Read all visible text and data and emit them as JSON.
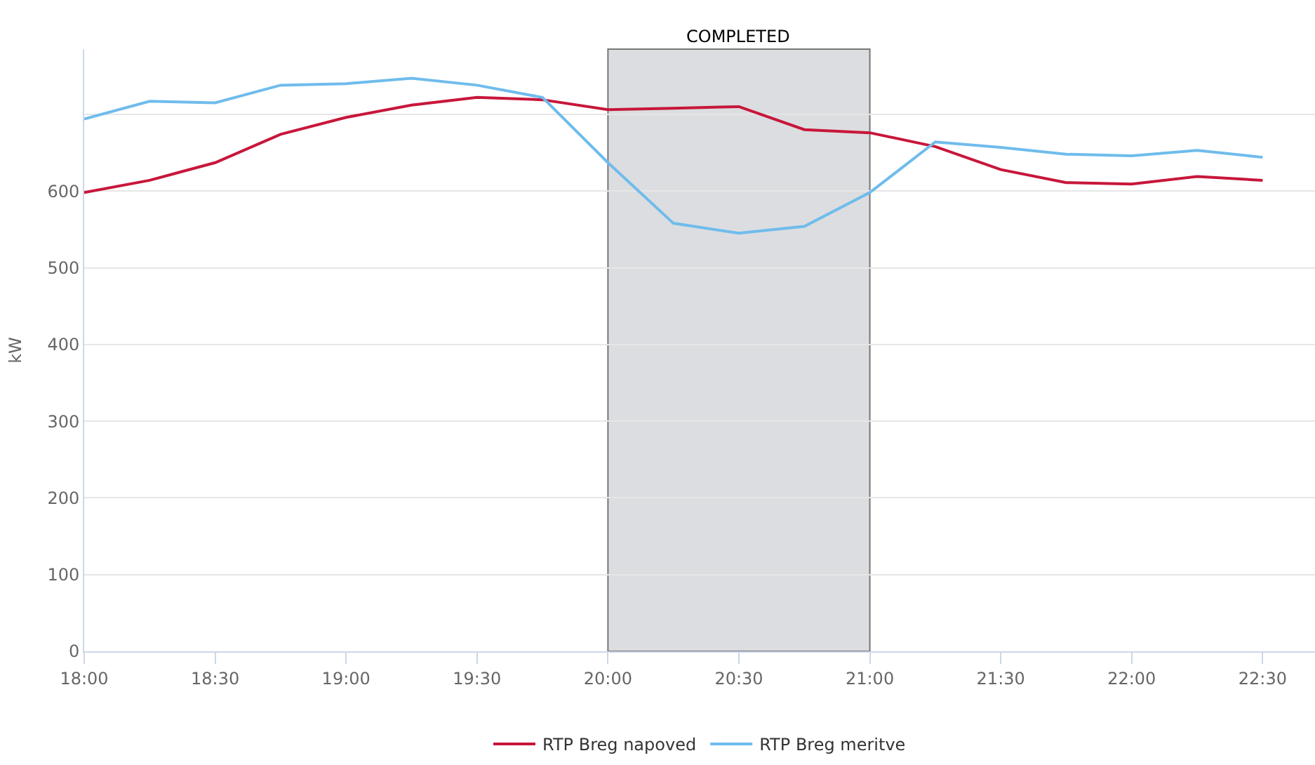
{
  "chart_data": {
    "type": "line",
    "ylabel": "kW",
    "x": [
      18,
      18.25,
      18.5,
      18.75,
      19,
      19.25,
      19.5,
      19.75,
      20,
      20.25,
      20.5,
      20.75,
      21,
      21.25,
      21.5,
      21.75,
      22,
      22.25,
      22.5
    ],
    "series": [
      {
        "name": "RTP Breg napoved",
        "color": "#c8163a",
        "values": [
          598,
          614,
          637,
          674,
          696,
          712,
          722,
          719,
          706,
          708,
          710,
          680,
          676,
          658,
          628,
          611,
          609,
          619,
          614
        ]
      },
      {
        "name": "RTP Breg meritve",
        "color": "#6fbcec",
        "values": [
          694,
          717,
          715,
          738,
          740,
          747,
          738,
          722,
          637,
          558,
          545,
          554,
          598,
          664,
          657,
          648,
          646,
          653,
          644
        ]
      }
    ],
    "xlim": [
      18,
      22.7
    ],
    "xticks": [
      {
        "value": 18,
        "label": "18:00"
      },
      {
        "value": 18.5,
        "label": "18:30"
      },
      {
        "value": 19,
        "label": "19:00"
      },
      {
        "value": 19.5,
        "label": "19:30"
      },
      {
        "value": 20,
        "label": "20:00"
      },
      {
        "value": 20.5,
        "label": "20:30"
      },
      {
        "value": 21,
        "label": "21:00"
      },
      {
        "value": 21.5,
        "label": "21:30"
      },
      {
        "value": 22,
        "label": "22:00"
      },
      {
        "value": 22.5,
        "label": "22:30"
      }
    ],
    "ylim": [
      0,
      785
    ],
    "yticks": [
      0,
      100,
      200,
      300,
      400,
      500,
      600,
      {
        "value": 700,
        "label": null
      }
    ],
    "bands": [
      {
        "axis": "x",
        "from": 20,
        "to": 21,
        "label": "COMPLETED",
        "color": "#dcdde0"
      }
    ],
    "grid": "y",
    "legend": "bottom",
    "marker": "none",
    "line_style": "solid"
  }
}
